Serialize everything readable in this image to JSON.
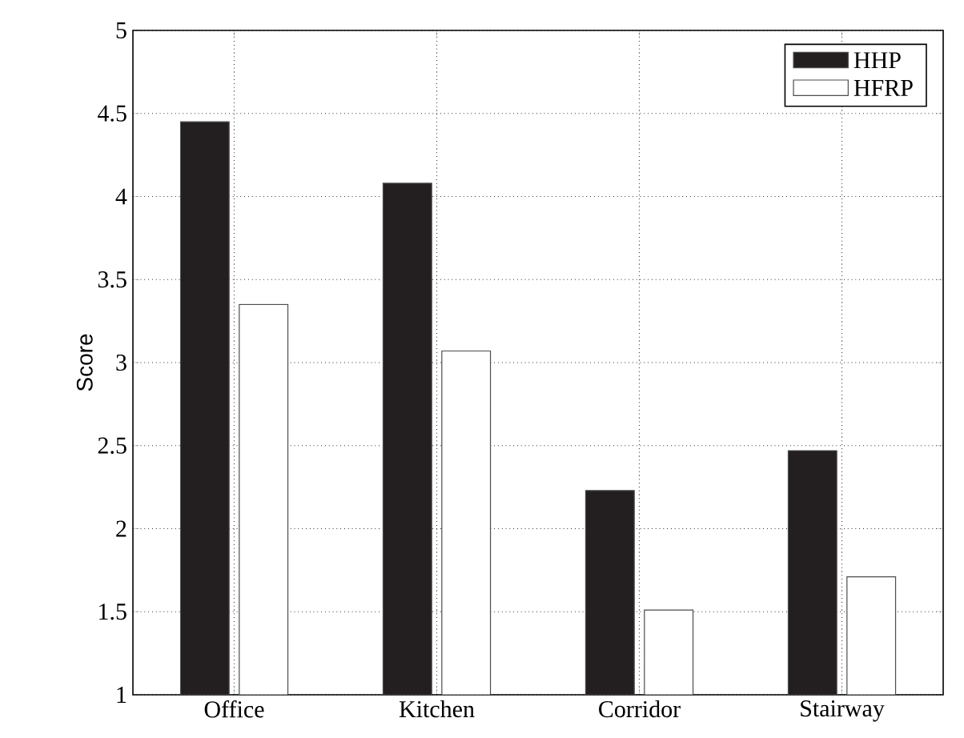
{
  "chart_data": {
    "type": "bar",
    "ylabel": "Score",
    "categories": [
      "Office",
      "Kitchen",
      "Corridor",
      "Stairway"
    ],
    "series": [
      {
        "name": "HHP",
        "color": "#231f20",
        "values": [
          4.45,
          4.08,
          2.23,
          2.47
        ]
      },
      {
        "name": "HFRP",
        "color": "#ffffff",
        "values": [
          3.35,
          3.07,
          1.51,
          1.71
        ]
      }
    ],
    "ylim": [
      1,
      5
    ],
    "yticks": [
      1,
      1.5,
      2,
      2.5,
      3,
      3.5,
      4,
      4.5,
      5
    ],
    "grid": true,
    "legend": "top right"
  }
}
